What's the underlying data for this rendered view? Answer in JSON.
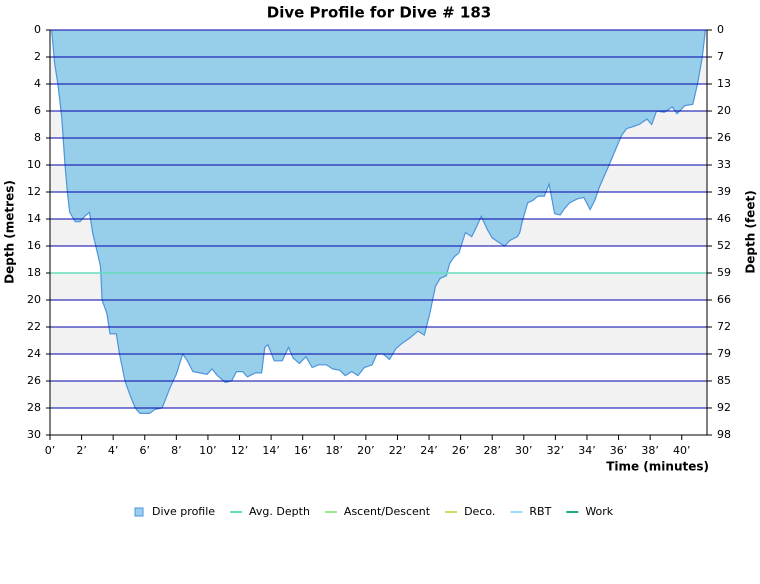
{
  "chart_data": {
    "type": "area",
    "title": "Dive Profile for Dive # 183",
    "x_label": "Time (minutes)",
    "y_label": "Depth (metres)",
    "y2_label": "Depth (feet)",
    "y_inverted": true,
    "xlim": [
      0,
      41.6
    ],
    "ylim": [
      0,
      30
    ],
    "y2lim": [
      0,
      98.43
    ],
    "xticks": [
      {
        "value": 0,
        "label": "0’"
      },
      {
        "value": 2,
        "label": "2’"
      },
      {
        "value": 4,
        "label": "4’"
      },
      {
        "value": 6,
        "label": "6’"
      },
      {
        "value": 8,
        "label": "8’"
      },
      {
        "value": 10,
        "label": "10’"
      },
      {
        "value": 12,
        "label": "12’"
      },
      {
        "value": 14,
        "label": "14’"
      },
      {
        "value": 16,
        "label": "16’"
      },
      {
        "value": 18,
        "label": "18’"
      },
      {
        "value": 20,
        "label": "20’"
      },
      {
        "value": 22,
        "label": "22’"
      },
      {
        "value": 24,
        "label": "24’"
      },
      {
        "value": 26,
        "label": "26’"
      },
      {
        "value": 28,
        "label": "28’"
      },
      {
        "value": 30,
        "label": "30’"
      },
      {
        "value": 32,
        "label": "32’"
      },
      {
        "value": 34,
        "label": "34’"
      },
      {
        "value": 36,
        "label": "36’"
      },
      {
        "value": 38,
        "label": "38’"
      },
      {
        "value": 40,
        "label": "40’"
      }
    ],
    "yticks": [
      0,
      2,
      4,
      6,
      8,
      10,
      12,
      14,
      16,
      18,
      20,
      22,
      24,
      26,
      28,
      30
    ],
    "y2ticks": [
      0,
      {
        "value": 6.56,
        "label": "7"
      },
      {
        "value": 13.12,
        "label": "13"
      },
      {
        "value": 19.69,
        "label": "20"
      },
      {
        "value": 26.25,
        "label": "26"
      },
      {
        "value": 32.81,
        "label": "33"
      },
      {
        "value": 39.37,
        "label": "39"
      },
      {
        "value": 45.93,
        "label": "46"
      },
      {
        "value": 52.49,
        "label": "52"
      },
      {
        "value": 59.06,
        "label": "59"
      },
      {
        "value": 65.62,
        "label": "66"
      },
      {
        "value": 72.18,
        "label": "72"
      },
      {
        "value": 78.74,
        "label": "79"
      },
      {
        "value": 85.3,
        "label": "85"
      },
      {
        "value": 91.86,
        "label": "92"
      },
      {
        "value": 98.43,
        "label": "98"
      }
    ],
    "grid": true,
    "grid_color": "#0000aa",
    "band_color": "#f2f2f2",
    "x": [
      0.1,
      0.3,
      0.5,
      0.75,
      0.95,
      1.1,
      1.25,
      1.6,
      1.9,
      2.2,
      2.5,
      2.7,
      3.0,
      3.2,
      3.3,
      3.6,
      3.8,
      4.2,
      4.4,
      4.75,
      5.05,
      5.4,
      5.7,
      6.3,
      6.65,
      7.1,
      7.6,
      8.0,
      8.4,
      8.7,
      9.05,
      9.5,
      9.95,
      10.25,
      10.6,
      11.1,
      11.5,
      11.8,
      12.2,
      12.5,
      13.0,
      13.4,
      13.6,
      13.8,
      14.2,
      14.7,
      15.1,
      15.4,
      15.8,
      16.2,
      16.6,
      17.0,
      17.5,
      17.9,
      18.35,
      18.7,
      19.1,
      19.5,
      19.9,
      20.4,
      20.7,
      21.1,
      21.5,
      21.9,
      22.3,
      22.8,
      23.3,
      23.7,
      24.05,
      24.4,
      24.7,
      25.1,
      25.3,
      25.6,
      25.9,
      26.3,
      26.7,
      27.0,
      27.3,
      27.7,
      28.0,
      28.5,
      28.8,
      29.1,
      29.6,
      29.75,
      29.9,
      30.25,
      30.6,
      30.9,
      31.3,
      31.6,
      31.95,
      32.3,
      32.6,
      32.9,
      33.4,
      33.8,
      34.2,
      34.5,
      34.8,
      35.1,
      35.4,
      35.9,
      36.2,
      36.5,
      36.8,
      37.3,
      37.8,
      38.1,
      38.4,
      38.9,
      39.4,
      39.7,
      40.2,
      40.7,
      41.0,
      41.3,
      41.5
    ],
    "series": [
      {
        "name": "Dive profile",
        "color": "#97cfeb",
        "line_color": "#4d94db",
        "values": [
          0,
          2.5,
          4,
          6.5,
          10,
          12,
          13.5,
          14.2,
          14.2,
          13.8,
          13.5,
          15,
          16.5,
          17.5,
          20,
          21,
          22.5,
          22.5,
          24,
          26,
          27,
          28,
          28.4,
          28.4,
          28.1,
          28,
          26.5,
          25.5,
          24,
          24.5,
          25.3,
          25.4,
          25.5,
          25.1,
          25.6,
          26.1,
          26,
          25.3,
          25.3,
          25.7,
          25.4,
          25.4,
          23.5,
          23.3,
          24.5,
          24.5,
          23.5,
          24.3,
          24.7,
          24.2,
          25,
          24.8,
          24.8,
          25.1,
          25.2,
          25.6,
          25.3,
          25.6,
          25,
          24.8,
          24,
          24,
          24.4,
          23.6,
          23.2,
          22.8,
          22.3,
          22.6,
          21,
          19,
          18.4,
          18.2,
          17.3,
          16.8,
          16.5,
          15,
          15.3,
          14.6,
          13.8,
          14.8,
          15.4,
          15.8,
          16,
          15.6,
          15.3,
          15,
          14.2,
          12.8,
          12.6,
          12.3,
          12.3,
          11.4,
          13.6,
          13.7,
          13.2,
          12.8,
          12.5,
          12.4,
          13.3,
          12.6,
          11.6,
          10.8,
          10,
          8.6,
          7.8,
          7.3,
          7.2,
          7,
          6.6,
          7,
          6,
          6.1,
          5.7,
          6.2,
          5.6,
          5.5,
          4,
          2,
          0
        ]
      },
      {
        "name": "Avg. Depth",
        "color": "#66ddbb",
        "value": 18
      },
      {
        "name": "Ascent/Descent",
        "color": "#99ee88"
      },
      {
        "name": "Deco.",
        "color": "#ccdd66"
      },
      {
        "name": "RBT",
        "color": "#99ddff"
      },
      {
        "name": "Work",
        "color": "#22aa88"
      }
    ]
  }
}
